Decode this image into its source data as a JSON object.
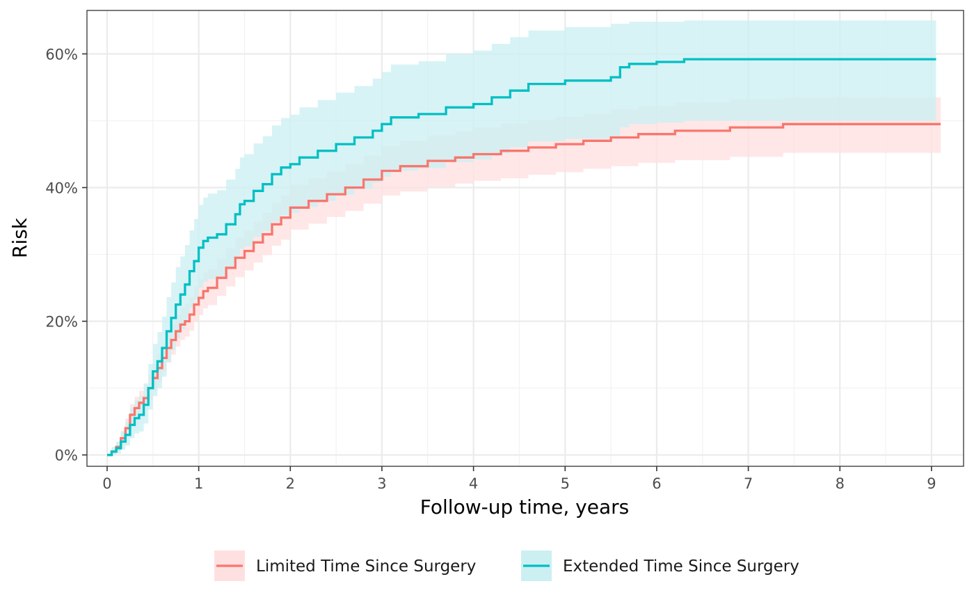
{
  "chart_data": {
    "type": "line",
    "step": true,
    "xlabel": "Follow-up time, years",
    "ylabel": "Risk",
    "xlim": [
      -0.22,
      9.35
    ],
    "ylim": [
      -0.017,
      0.665
    ],
    "x_ticks": [
      0,
      1,
      2,
      3,
      4,
      5,
      6,
      7,
      8,
      9
    ],
    "x_tick_labels": [
      "0",
      "1",
      "2",
      "3",
      "4",
      "5",
      "6",
      "7",
      "8",
      "9"
    ],
    "y_ticks": [
      0,
      0.2,
      0.4,
      0.6
    ],
    "y_tick_labels": [
      "0%",
      "20%",
      "40%",
      "60%"
    ],
    "grid": true,
    "legend_position": "bottom",
    "series": [
      {
        "name": "Limited Time Since Surgery",
        "color": "#F8766D",
        "band_color": "#FFE0E0",
        "x": [
          0,
          0.05,
          0.1,
          0.15,
          0.2,
          0.25,
          0.3,
          0.35,
          0.4,
          0.45,
          0.5,
          0.55,
          0.6,
          0.65,
          0.7,
          0.75,
          0.8,
          0.85,
          0.9,
          0.95,
          1.0,
          1.05,
          1.1,
          1.2,
          1.3,
          1.4,
          1.5,
          1.6,
          1.7,
          1.8,
          1.9,
          2.0,
          2.2,
          2.4,
          2.6,
          2.8,
          3.0,
          3.2,
          3.5,
          3.8,
          4.0,
          4.3,
          4.6,
          4.9,
          5.2,
          5.5,
          5.8,
          6.2,
          6.8,
          7.38,
          9.1
        ],
        "y": [
          0,
          0.005,
          0.012,
          0.025,
          0.04,
          0.06,
          0.07,
          0.078,
          0.085,
          0.1,
          0.115,
          0.13,
          0.145,
          0.16,
          0.172,
          0.185,
          0.195,
          0.2,
          0.21,
          0.225,
          0.235,
          0.245,
          0.25,
          0.265,
          0.28,
          0.295,
          0.305,
          0.318,
          0.33,
          0.345,
          0.355,
          0.37,
          0.38,
          0.39,
          0.4,
          0.412,
          0.425,
          0.432,
          0.44,
          0.445,
          0.45,
          0.455,
          0.46,
          0.465,
          0.47,
          0.475,
          0.48,
          0.485,
          0.49,
          0.495,
          0.495
        ],
        "lower": [
          0,
          0.0,
          0.005,
          0.015,
          0.028,
          0.045,
          0.055,
          0.062,
          0.068,
          0.082,
          0.096,
          0.11,
          0.124,
          0.138,
          0.15,
          0.162,
          0.172,
          0.177,
          0.186,
          0.2,
          0.209,
          0.219,
          0.224,
          0.238,
          0.252,
          0.266,
          0.276,
          0.288,
          0.299,
          0.313,
          0.322,
          0.337,
          0.346,
          0.356,
          0.365,
          0.376,
          0.388,
          0.394,
          0.401,
          0.406,
          0.41,
          0.414,
          0.419,
          0.423,
          0.428,
          0.432,
          0.437,
          0.441,
          0.446,
          0.452,
          0.452
        ],
        "upper": [
          0,
          0.01,
          0.02,
          0.036,
          0.054,
          0.076,
          0.087,
          0.096,
          0.104,
          0.12,
          0.136,
          0.152,
          0.168,
          0.184,
          0.196,
          0.21,
          0.22,
          0.226,
          0.236,
          0.252,
          0.263,
          0.273,
          0.278,
          0.294,
          0.309,
          0.325,
          0.335,
          0.349,
          0.362,
          0.377,
          0.388,
          0.404,
          0.414,
          0.424,
          0.435,
          0.448,
          0.462,
          0.47,
          0.478,
          0.484,
          0.49,
          0.496,
          0.501,
          0.506,
          0.511,
          0.517,
          0.522,
          0.527,
          0.532,
          0.535,
          0.535
        ]
      },
      {
        "name": "Extended Time Since Surgery",
        "color": "#00BFC4",
        "band_color": "#CCF0F2",
        "x": [
          0,
          0.05,
          0.1,
          0.15,
          0.2,
          0.25,
          0.3,
          0.35,
          0.4,
          0.45,
          0.5,
          0.55,
          0.6,
          0.65,
          0.7,
          0.75,
          0.8,
          0.85,
          0.9,
          0.95,
          1.0,
          1.05,
          1.1,
          1.2,
          1.3,
          1.4,
          1.45,
          1.5,
          1.6,
          1.7,
          1.8,
          1.9,
          2.0,
          2.1,
          2.3,
          2.5,
          2.7,
          2.9,
          3.0,
          3.1,
          3.4,
          3.7,
          4.0,
          4.2,
          4.4,
          4.6,
          5.0,
          5.5,
          5.6,
          5.7,
          6.0,
          6.3,
          9.05
        ],
        "y": [
          0,
          0.005,
          0.01,
          0.02,
          0.03,
          0.045,
          0.055,
          0.06,
          0.075,
          0.1,
          0.125,
          0.14,
          0.16,
          0.185,
          0.205,
          0.225,
          0.24,
          0.255,
          0.275,
          0.29,
          0.31,
          0.32,
          0.325,
          0.33,
          0.345,
          0.36,
          0.375,
          0.38,
          0.395,
          0.405,
          0.42,
          0.43,
          0.435,
          0.445,
          0.455,
          0.465,
          0.475,
          0.485,
          0.495,
          0.505,
          0.51,
          0.52,
          0.525,
          0.535,
          0.545,
          0.555,
          0.56,
          0.565,
          0.58,
          0.585,
          0.588,
          0.592,
          0.592
        ],
        "lower": [
          0,
          0.0,
          0.002,
          0.008,
          0.014,
          0.025,
          0.032,
          0.035,
          0.047,
          0.068,
          0.088,
          0.1,
          0.117,
          0.139,
          0.157,
          0.175,
          0.188,
          0.201,
          0.219,
          0.232,
          0.25,
          0.259,
          0.263,
          0.267,
          0.281,
          0.295,
          0.308,
          0.312,
          0.326,
          0.335,
          0.349,
          0.358,
          0.362,
          0.371,
          0.38,
          0.389,
          0.398,
          0.407,
          0.416,
          0.425,
          0.429,
          0.438,
          0.442,
          0.451,
          0.46,
          0.469,
          0.473,
          0.477,
          0.49,
          0.495,
          0.497,
          0.5,
          0.5
        ],
        "upper": [
          0,
          0.012,
          0.02,
          0.035,
          0.05,
          0.07,
          0.082,
          0.089,
          0.107,
          0.136,
          0.166,
          0.184,
          0.207,
          0.236,
          0.258,
          0.281,
          0.297,
          0.314,
          0.336,
          0.353,
          0.374,
          0.385,
          0.391,
          0.396,
          0.412,
          0.428,
          0.445,
          0.45,
          0.466,
          0.477,
          0.493,
          0.504,
          0.509,
          0.52,
          0.531,
          0.542,
          0.552,
          0.563,
          0.573,
          0.584,
          0.589,
          0.6,
          0.605,
          0.615,
          0.625,
          0.635,
          0.64,
          0.645,
          0.645,
          0.648,
          0.648,
          0.65,
          0.65
        ]
      }
    ]
  }
}
